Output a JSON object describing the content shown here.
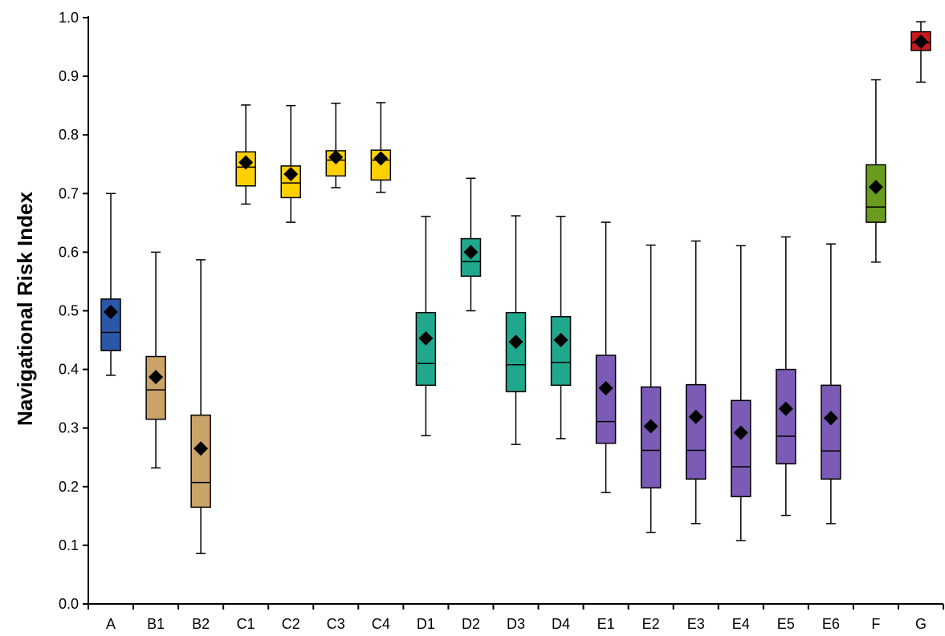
{
  "chart_data": {
    "type": "box",
    "title": "",
    "xlabel": "",
    "ylabel": "Navigational Risk Index",
    "ylim": [
      0.0,
      1.0
    ],
    "y_ticks": [
      "0.0",
      "0.1",
      "0.2",
      "0.3",
      "0.4",
      "0.5",
      "0.6",
      "0.7",
      "0.8",
      "0.9",
      "1.0"
    ],
    "y_tick_values": [
      0.0,
      0.1,
      0.2,
      0.3,
      0.4,
      0.5,
      0.6,
      0.7,
      0.8,
      0.9,
      1.0
    ],
    "grid": false,
    "legend": "none",
    "mean_marker": "diamond",
    "categories": [
      "A",
      "B1",
      "B2",
      "C1",
      "C2",
      "C3",
      "C4",
      "D1",
      "D2",
      "D3",
      "D4",
      "E1",
      "E2",
      "E3",
      "E4",
      "E5",
      "E6",
      "F",
      "G"
    ],
    "boxes": [
      {
        "category": "A",
        "min": 0.39,
        "q1": 0.432,
        "median": 0.463,
        "q3": 0.52,
        "max": 0.7,
        "mean": 0.498,
        "color": "#2b57a8"
      },
      {
        "category": "B1",
        "min": 0.232,
        "q1": 0.315,
        "median": 0.365,
        "q3": 0.422,
        "max": 0.6,
        "mean": 0.387,
        "color": "#c9a367"
      },
      {
        "category": "B2",
        "min": 0.086,
        "q1": 0.165,
        "median": 0.207,
        "q3": 0.322,
        "max": 0.587,
        "mean": 0.265,
        "color": "#c9a367"
      },
      {
        "category": "C1",
        "min": 0.682,
        "q1": 0.713,
        "median": 0.745,
        "q3": 0.771,
        "max": 0.851,
        "mean": 0.753,
        "color": "#ffd000"
      },
      {
        "category": "C2",
        "min": 0.651,
        "q1": 0.693,
        "median": 0.718,
        "q3": 0.747,
        "max": 0.85,
        "mean": 0.733,
        "color": "#ffd000"
      },
      {
        "category": "C3",
        "min": 0.71,
        "q1": 0.73,
        "median": 0.757,
        "q3": 0.773,
        "max": 0.854,
        "mean": 0.762,
        "color": "#ffd000"
      },
      {
        "category": "C4",
        "min": 0.702,
        "q1": 0.723,
        "median": 0.757,
        "q3": 0.774,
        "max": 0.855,
        "mean": 0.76,
        "color": "#ffd000"
      },
      {
        "category": "D1",
        "min": 0.287,
        "q1": 0.373,
        "median": 0.41,
        "q3": 0.497,
        "max": 0.661,
        "mean": 0.453,
        "color": "#20a88d"
      },
      {
        "category": "D2",
        "min": 0.5,
        "q1": 0.559,
        "median": 0.584,
        "q3": 0.623,
        "max": 0.726,
        "mean": 0.6,
        "color": "#20a88d"
      },
      {
        "category": "D3",
        "min": 0.272,
        "q1": 0.362,
        "median": 0.408,
        "q3": 0.497,
        "max": 0.662,
        "mean": 0.447,
        "color": "#20a88d"
      },
      {
        "category": "D4",
        "min": 0.282,
        "q1": 0.373,
        "median": 0.412,
        "q3": 0.49,
        "max": 0.661,
        "mean": 0.45,
        "color": "#20a88d"
      },
      {
        "category": "E1",
        "min": 0.19,
        "q1": 0.274,
        "median": 0.311,
        "q3": 0.424,
        "max": 0.651,
        "mean": 0.368,
        "color": "#7b5bb5"
      },
      {
        "category": "E2",
        "min": 0.122,
        "q1": 0.198,
        "median": 0.262,
        "q3": 0.37,
        "max": 0.612,
        "mean": 0.303,
        "color": "#7b5bb5"
      },
      {
        "category": "E3",
        "min": 0.137,
        "q1": 0.213,
        "median": 0.262,
        "q3": 0.374,
        "max": 0.619,
        "mean": 0.319,
        "color": "#7b5bb5"
      },
      {
        "category": "E4",
        "min": 0.108,
        "q1": 0.183,
        "median": 0.234,
        "q3": 0.347,
        "max": 0.611,
        "mean": 0.292,
        "color": "#7b5bb5"
      },
      {
        "category": "E5",
        "min": 0.151,
        "q1": 0.239,
        "median": 0.286,
        "q3": 0.4,
        "max": 0.626,
        "mean": 0.333,
        "color": "#7b5bb5"
      },
      {
        "category": "E6",
        "min": 0.137,
        "q1": 0.213,
        "median": 0.261,
        "q3": 0.373,
        "max": 0.614,
        "mean": 0.317,
        "color": "#7b5bb5"
      },
      {
        "category": "F",
        "min": 0.583,
        "q1": 0.651,
        "median": 0.677,
        "q3": 0.749,
        "max": 0.894,
        "mean": 0.711,
        "color": "#6a9b1f"
      },
      {
        "category": "G",
        "min": 0.89,
        "q1": 0.944,
        "median": 0.957,
        "q3": 0.976,
        "max": 0.993,
        "mean": 0.959,
        "color": "#c8191f"
      }
    ]
  }
}
